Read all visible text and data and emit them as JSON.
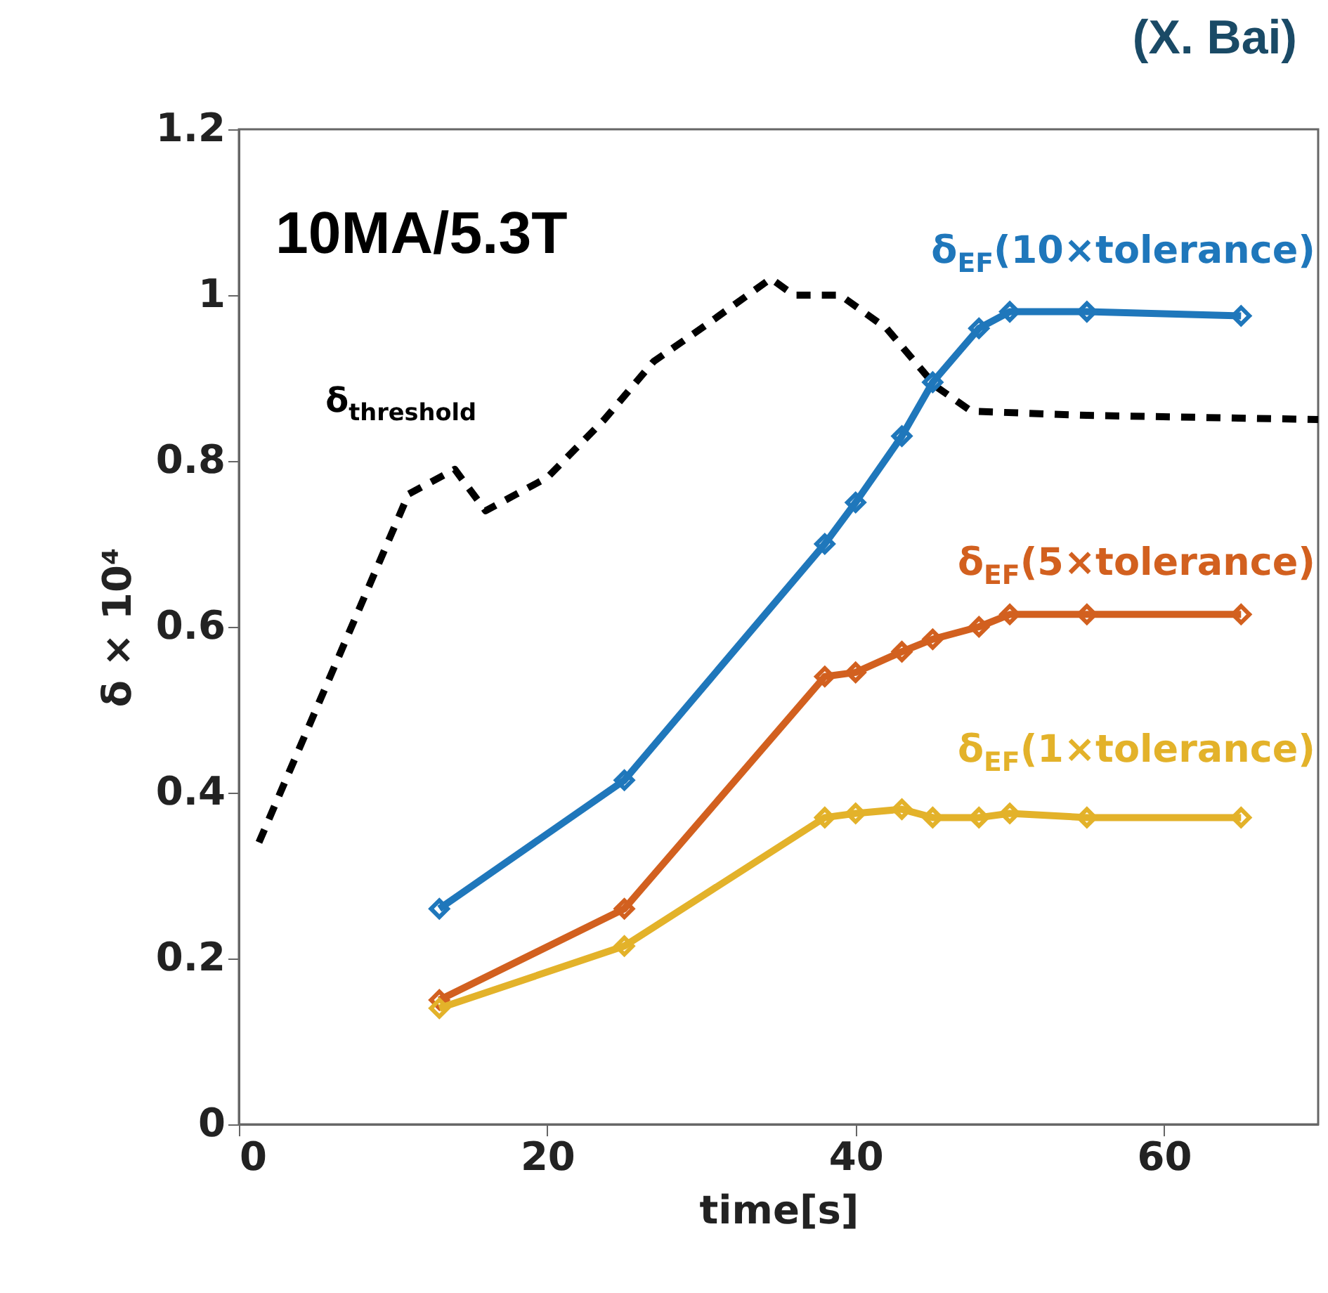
{
  "chart_data": {
    "type": "line",
    "xlabel": "time[s]",
    "ylabel": "δ × 10⁴",
    "xlim": [
      0,
      70
    ],
    "xticks": [
      0,
      20,
      40,
      60
    ],
    "ylim": [
      0,
      1.2
    ],
    "yticks": [
      0,
      0.2,
      0.4,
      0.6,
      0.8,
      1,
      1.2
    ],
    "marker": "diamond",
    "annotations": [
      "10MA/5.3T",
      "(X. Bai)"
    ],
    "series": [
      {
        "name": "δ$_{threshold}$",
        "color": "#000000",
        "marker": "none",
        "line_style": "dashed",
        "x": [
          1.3,
          11,
          12,
          14,
          16,
          18,
          20,
          23.7,
          26.9,
          30,
          34.5,
          36,
          39,
          42,
          45.2,
          47.5,
          55,
          70
        ],
        "values": [
          0.34,
          0.76,
          0.77,
          0.79,
          0.74,
          0.76,
          0.78,
          0.85,
          0.92,
          0.96,
          1.02,
          1.0,
          1.0,
          0.96,
          0.89,
          0.86,
          0.855,
          0.85
        ]
      },
      {
        "name": "δ$_{EF}$(10×tolerance)",
        "color": "#1f77bb",
        "x": [
          13,
          25,
          38,
          40,
          43,
          45,
          48,
          50,
          55,
          65
        ],
        "values": [
          0.26,
          0.415,
          0.7,
          0.75,
          0.83,
          0.895,
          0.96,
          0.98,
          0.98,
          0.975
        ]
      },
      {
        "name": "δ$_{EF}$(5×tolerance)",
        "color": "#d2601f",
        "x": [
          13,
          25,
          38,
          40,
          43,
          45,
          48,
          50,
          55,
          65
        ],
        "values": [
          0.15,
          0.26,
          0.54,
          0.545,
          0.57,
          0.585,
          0.6,
          0.615,
          0.615,
          0.615
        ]
      },
      {
        "name": "δ$_{EF}$(1×tolerance)",
        "color": "#e3b22a",
        "x": [
          13,
          25,
          38,
          40,
          43,
          45,
          48,
          50,
          55,
          65
        ],
        "values": [
          0.14,
          0.215,
          0.37,
          0.375,
          0.38,
          0.37,
          0.37,
          0.375,
          0.37,
          0.37
        ]
      }
    ]
  }
}
